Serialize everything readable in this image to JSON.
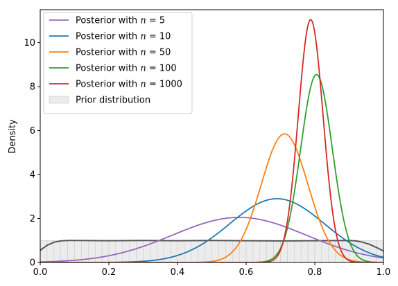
{
  "chart_data": {
    "type": "line",
    "title": "",
    "xlabel": "",
    "ylabel": "Density",
    "xlim": [
      0,
      1
    ],
    "ylim": [
      0,
      11.5
    ],
    "xticks": [
      "0.0",
      "0.2",
      "0.4",
      "0.6",
      "0.8",
      "1.0"
    ],
    "yticks": [
      "0",
      "2",
      "4",
      "6",
      "8",
      "10"
    ],
    "grid": false,
    "legend_position": "top-left",
    "prior": {
      "name": "Prior distribution",
      "type": "histogram",
      "x": [
        0.0,
        0.02,
        0.04,
        0.06,
        0.08,
        0.1,
        0.2,
        0.3,
        0.4,
        0.5,
        0.6,
        0.7,
        0.8,
        0.9,
        0.92,
        0.94,
        0.96,
        0.98,
        1.0
      ],
      "kde": [
        0.55,
        0.78,
        0.92,
        0.98,
        1.0,
        1.0,
        0.99,
        1.0,
        0.99,
        1.0,
        0.99,
        0.98,
        0.99,
        1.0,
        0.98,
        0.92,
        0.82,
        0.68,
        0.52
      ],
      "bar_height": 1.0,
      "color": "#d9d9d9",
      "kde_color": "#555555"
    },
    "series": [
      {
        "name_prefix": "Posterior with ",
        "n_label": "5",
        "color": "#9467bd",
        "mean": 0.58,
        "sd": 0.195,
        "peak": 2.05
      },
      {
        "name_prefix": "Posterior with ",
        "n_label": "10",
        "color": "#1f77b4",
        "mean": 0.69,
        "sd": 0.138,
        "peak": 2.9
      },
      {
        "name_prefix": "Posterior with ",
        "n_label": "50",
        "color": "#ff7f0e",
        "mean": 0.712,
        "sd": 0.068,
        "peak": 5.85
      },
      {
        "name_prefix": "Posterior with ",
        "n_label": "100",
        "color": "#2ca02c",
        "mean": 0.805,
        "sd": 0.046,
        "peak": 8.55
      },
      {
        "name_prefix": "Posterior with ",
        "n_label": "1000",
        "color": "#d62728",
        "mean": 0.788,
        "sd": 0.036,
        "peak": 11.05
      }
    ]
  }
}
